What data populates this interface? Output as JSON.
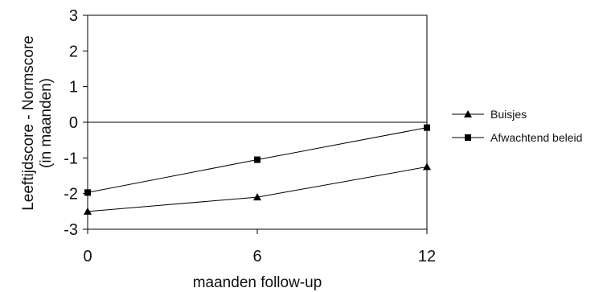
{
  "chart_data": {
    "type": "line",
    "title": "",
    "xlabel": "maanden follow-up",
    "ylabel": [
      "Leeftijdscore - Normscore",
      "(in maanden)"
    ],
    "x": [
      0,
      6,
      12
    ],
    "x_ticks": [
      0,
      6,
      12
    ],
    "x_tick_labels": [
      "0",
      "6",
      "12"
    ],
    "xlim": [
      0,
      12
    ],
    "y_ticks": [
      3,
      2,
      1,
      0,
      -1,
      -2,
      -3
    ],
    "y_tick_labels": [
      "3",
      "2",
      "1",
      "0",
      "-1",
      "-2",
      "-3"
    ],
    "ylim": [
      -3,
      3
    ],
    "grid": false,
    "zero_line": true,
    "legend_position": "right",
    "series": [
      {
        "name": "Buisjes",
        "marker": "triangle",
        "color": "#000000",
        "values": [
          -2.5,
          -2.1,
          -1.25
        ]
      },
      {
        "name": "Afwachtend beleid",
        "marker": "square",
        "color": "#000000",
        "values": [
          -1.97,
          -1.05,
          -0.15
        ]
      }
    ]
  }
}
